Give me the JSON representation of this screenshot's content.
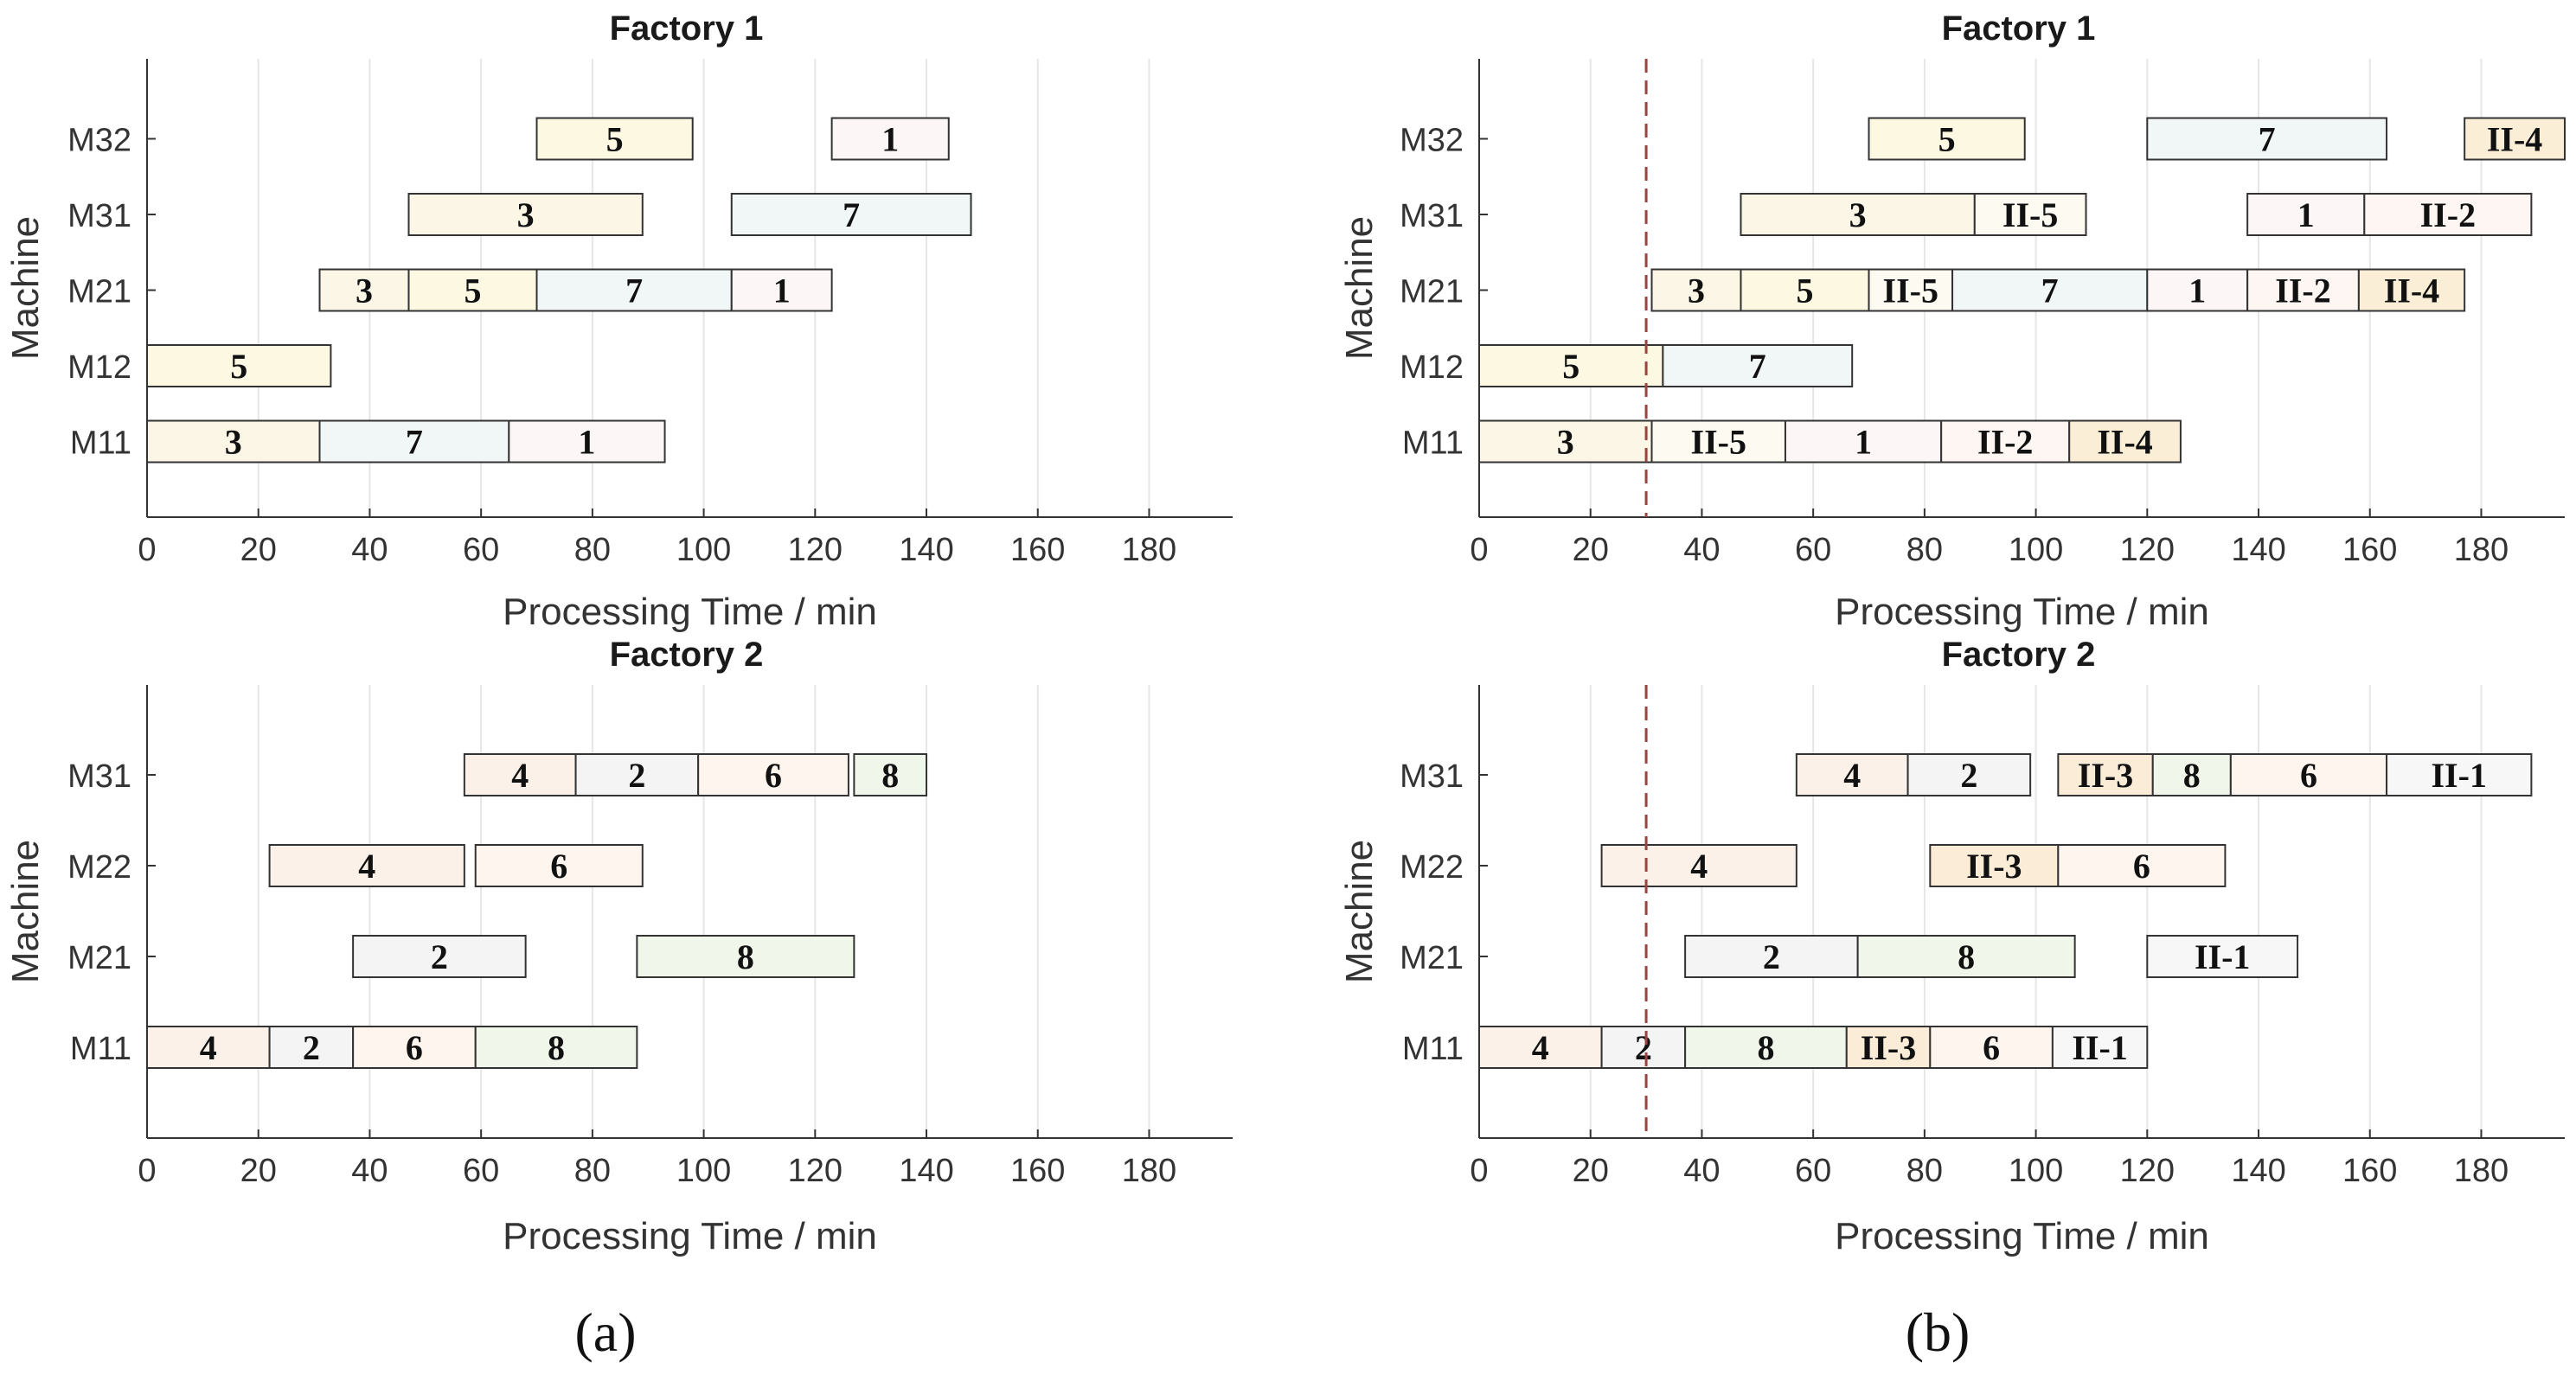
{
  "chart_data": [
    {
      "type": "gantt",
      "panel": "a",
      "title": "Factory 1",
      "xlabel": "Processing Time / min",
      "ylabel": "Machine",
      "xlim": [
        0,
        195
      ],
      "xticks": [
        0,
        20,
        40,
        60,
        80,
        100,
        120,
        140,
        160,
        180
      ],
      "machines": [
        "M11",
        "M12",
        "M21",
        "M31",
        "M32"
      ],
      "tasks": [
        {
          "machine": "M11",
          "label": "3",
          "start": 0,
          "end": 31,
          "color": "#fbf6e6"
        },
        {
          "machine": "M11",
          "label": "7",
          "start": 31,
          "end": 65,
          "color": "#f1f7f6"
        },
        {
          "machine": "M11",
          "label": "1",
          "start": 65,
          "end": 93,
          "color": "#fdf6f7"
        },
        {
          "machine": "M12",
          "label": "5",
          "start": 0,
          "end": 33,
          "color": "#fdf8e1"
        },
        {
          "machine": "M21",
          "label": "3",
          "start": 31,
          "end": 47,
          "color": "#fbf6e6"
        },
        {
          "machine": "M21",
          "label": "5",
          "start": 47,
          "end": 70,
          "color": "#fdf8e1"
        },
        {
          "machine": "M21",
          "label": "7",
          "start": 70,
          "end": 105,
          "color": "#f1f7f6"
        },
        {
          "machine": "M21",
          "label": "1",
          "start": 105,
          "end": 123,
          "color": "#fdf6f7"
        },
        {
          "machine": "M31",
          "label": "3",
          "start": 47,
          "end": 89,
          "color": "#fbf6e6"
        },
        {
          "machine": "M31",
          "label": "7",
          "start": 105,
          "end": 148,
          "color": "#f1f7f6"
        },
        {
          "machine": "M32",
          "label": "5",
          "start": 70,
          "end": 98,
          "color": "#fdf8e1"
        },
        {
          "machine": "M32",
          "label": "1",
          "start": 123,
          "end": 144,
          "color": "#fdf6f7"
        }
      ]
    },
    {
      "type": "gantt",
      "panel": "a",
      "title": "Factory 2",
      "xlabel": "Processing Time / min",
      "ylabel": "Machine",
      "xlim": [
        0,
        195
      ],
      "xticks": [
        0,
        20,
        40,
        60,
        80,
        100,
        120,
        140,
        160,
        180
      ],
      "machines": [
        "M11",
        "M21",
        "M22",
        "M31"
      ],
      "tasks": [
        {
          "machine": "M11",
          "label": "4",
          "start": 0,
          "end": 22,
          "color": "#fbf1e8"
        },
        {
          "machine": "M11",
          "label": "2",
          "start": 22,
          "end": 37,
          "color": "#f4f4f4"
        },
        {
          "machine": "M11",
          "label": "6",
          "start": 37,
          "end": 59,
          "color": "#fdf5ee"
        },
        {
          "machine": "M11",
          "label": "8",
          "start": 59,
          "end": 88,
          "color": "#f1f6ea"
        },
        {
          "machine": "M21",
          "label": "2",
          "start": 37,
          "end": 68,
          "color": "#f4f4f4"
        },
        {
          "machine": "M21",
          "label": "8",
          "start": 88,
          "end": 127,
          "color": "#f1f6ea"
        },
        {
          "machine": "M22",
          "label": "4",
          "start": 22,
          "end": 57,
          "color": "#fbf1e8"
        },
        {
          "machine": "M22",
          "label": "6",
          "start": 59,
          "end": 89,
          "color": "#fdf5ee"
        },
        {
          "machine": "M31",
          "label": "4",
          "start": 57,
          "end": 77,
          "color": "#fbf1e8"
        },
        {
          "machine": "M31",
          "label": "2",
          "start": 77,
          "end": 99,
          "color": "#f4f4f4"
        },
        {
          "machine": "M31",
          "label": "6",
          "start": 99,
          "end": 126,
          "color": "#fdf5ee"
        },
        {
          "machine": "M31",
          "label": "8",
          "start": 127,
          "end": 140,
          "color": "#f1f6ea"
        }
      ]
    },
    {
      "type": "gantt",
      "panel": "b",
      "title": "Factory 1",
      "xlabel": "Processing Time / min",
      "ylabel": "Machine",
      "xlim": [
        0,
        195
      ],
      "xticks": [
        0,
        20,
        40,
        60,
        80,
        100,
        120,
        140,
        160,
        180
      ],
      "machines": [
        "M11",
        "M12",
        "M21",
        "M31",
        "M32"
      ],
      "reference_line": 30,
      "tasks": [
        {
          "machine": "M11",
          "label": "3",
          "start": 0,
          "end": 31,
          "color": "#fbf6e6"
        },
        {
          "machine": "M11",
          "label": "II-5",
          "start": 31,
          "end": 55,
          "color": "#fdfaf2"
        },
        {
          "machine": "M11",
          "label": "1",
          "start": 55,
          "end": 83,
          "color": "#fdf6f7"
        },
        {
          "machine": "M11",
          "label": "II-2",
          "start": 83,
          "end": 106,
          "color": "#fdf6f2"
        },
        {
          "machine": "M11",
          "label": "II-4",
          "start": 106,
          "end": 126,
          "color": "#fbeed6"
        },
        {
          "machine": "M12",
          "label": "5",
          "start": 0,
          "end": 33,
          "color": "#fdf8e1"
        },
        {
          "machine": "M12",
          "label": "7",
          "start": 33,
          "end": 67,
          "color": "#f1f7f6"
        },
        {
          "machine": "M21",
          "label": "3",
          "start": 31,
          "end": 47,
          "color": "#fbf6e6"
        },
        {
          "machine": "M21",
          "label": "5",
          "start": 47,
          "end": 70,
          "color": "#fdf8e1"
        },
        {
          "machine": "M21",
          "label": "II-5",
          "start": 70,
          "end": 85,
          "color": "#fdfaf2"
        },
        {
          "machine": "M21",
          "label": "7",
          "start": 85,
          "end": 120,
          "color": "#f1f7f6"
        },
        {
          "machine": "M21",
          "label": "1",
          "start": 120,
          "end": 138,
          "color": "#fdf6f7"
        },
        {
          "machine": "M21",
          "label": "II-2",
          "start": 138,
          "end": 158,
          "color": "#fdf6f2"
        },
        {
          "machine": "M21",
          "label": "II-4",
          "start": 158,
          "end": 177,
          "color": "#fbeed6"
        },
        {
          "machine": "M31",
          "label": "3",
          "start": 47,
          "end": 89,
          "color": "#fbf6e6"
        },
        {
          "machine": "M31",
          "label": "II-5",
          "start": 89,
          "end": 109,
          "color": "#fdfaf2"
        },
        {
          "machine": "M31",
          "label": "1",
          "start": 138,
          "end": 159,
          "color": "#fdf6f7"
        },
        {
          "machine": "M31",
          "label": "II-2",
          "start": 159,
          "end": 189,
          "color": "#fdf6f2"
        },
        {
          "machine": "M32",
          "label": "5",
          "start": 70,
          "end": 98,
          "color": "#fdf8e1"
        },
        {
          "machine": "M32",
          "label": "7",
          "start": 120,
          "end": 163,
          "color": "#f1f7f6"
        },
        {
          "machine": "M32",
          "label": "II-4",
          "start": 177,
          "end": 195,
          "color": "#fbeed6"
        }
      ]
    },
    {
      "type": "gantt",
      "panel": "b",
      "title": "Factory 2",
      "xlabel": "Processing Time / min",
      "ylabel": "Machine",
      "xlim": [
        0,
        195
      ],
      "xticks": [
        0,
        20,
        40,
        60,
        80,
        100,
        120,
        140,
        160,
        180
      ],
      "machines": [
        "M11",
        "M21",
        "M22",
        "M31"
      ],
      "reference_line": 30,
      "tasks": [
        {
          "machine": "M11",
          "label": "4",
          "start": 0,
          "end": 22,
          "color": "#fbf1e8"
        },
        {
          "machine": "M11",
          "label": "2",
          "start": 22,
          "end": 37,
          "color": "#f4f4f4"
        },
        {
          "machine": "M11",
          "label": "8",
          "start": 37,
          "end": 66,
          "color": "#f1f6ea"
        },
        {
          "machine": "M11",
          "label": "II-3",
          "start": 66,
          "end": 81,
          "color": "#fbecd7"
        },
        {
          "machine": "M11",
          "label": "6",
          "start": 81,
          "end": 103,
          "color": "#fdf5ee"
        },
        {
          "machine": "M11",
          "label": "II-1",
          "start": 103,
          "end": 120,
          "color": "#f7f7f7"
        },
        {
          "machine": "M21",
          "label": "2",
          "start": 37,
          "end": 68,
          "color": "#f4f4f4"
        },
        {
          "machine": "M21",
          "label": "8",
          "start": 68,
          "end": 107,
          "color": "#f1f6ea"
        },
        {
          "machine": "M21",
          "label": "II-1",
          "start": 120,
          "end": 147,
          "color": "#f7f7f7"
        },
        {
          "machine": "M22",
          "label": "4",
          "start": 22,
          "end": 57,
          "color": "#fbf1e8"
        },
        {
          "machine": "M22",
          "label": "II-3",
          "start": 81,
          "end": 104,
          "color": "#fbecd7"
        },
        {
          "machine": "M22",
          "label": "6",
          "start": 104,
          "end": 134,
          "color": "#fdf5ee"
        },
        {
          "machine": "M31",
          "label": "4",
          "start": 57,
          "end": 77,
          "color": "#fbf1e8"
        },
        {
          "machine": "M31",
          "label": "2",
          "start": 77,
          "end": 99,
          "color": "#f4f4f4"
        },
        {
          "machine": "M31",
          "label": "II-3",
          "start": 104,
          "end": 121,
          "color": "#fbecd7"
        },
        {
          "machine": "M31",
          "label": "8",
          "start": 121,
          "end": 135,
          "color": "#f1f6ea"
        },
        {
          "machine": "M31",
          "label": "6",
          "start": 135,
          "end": 163,
          "color": "#fdf5ee"
        },
        {
          "machine": "M31",
          "label": "II-1",
          "start": 163,
          "end": 189,
          "color": "#f7f7f7"
        }
      ]
    }
  ],
  "captions": {
    "a": "(a)",
    "b": "(b)"
  },
  "colors": {
    "axis": "#333333",
    "grid": "#e6e6e6",
    "bar_stroke": "#333333",
    "reference_line": "#a0413e"
  }
}
